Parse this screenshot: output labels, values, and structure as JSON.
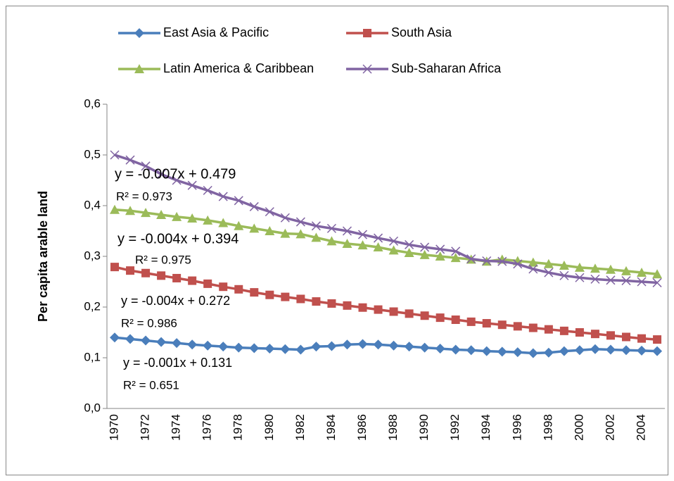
{
  "chart_data": {
    "type": "line",
    "y_label": "Per capita arable land",
    "categories": [
      "1970",
      null,
      "1972",
      null,
      "1974",
      null,
      "1976",
      null,
      "1978",
      null,
      "1980",
      null,
      "1982",
      null,
      "1984",
      null,
      "1986",
      null,
      "1988",
      null,
      "1990",
      null,
      "1992",
      null,
      "1994",
      null,
      "1996",
      null,
      "1998",
      null,
      "2000",
      null,
      "2002",
      null,
      "2004",
      null
    ],
    "series": [
      {
        "name": "East Asia & Pacific",
        "color": "#4a7ebb",
        "marker": "diamond",
        "values": [
          0.14,
          0.137,
          0.134,
          0.131,
          0.129,
          0.126,
          0.124,
          0.122,
          0.12,
          0.119,
          0.118,
          0.117,
          0.116,
          0.122,
          0.123,
          0.126,
          0.127,
          0.126,
          0.124,
          0.122,
          0.12,
          0.118,
          0.116,
          0.115,
          0.113,
          0.112,
          0.111,
          0.109,
          0.11,
          0.113,
          0.115,
          0.117,
          0.116,
          0.115,
          0.114,
          0.113
        ]
      },
      {
        "name": "South Asia",
        "color": "#c0504d",
        "marker": "square",
        "values": [
          0.279,
          0.272,
          0.267,
          0.262,
          0.257,
          0.252,
          0.246,
          0.24,
          0.235,
          0.229,
          0.224,
          0.22,
          0.216,
          0.211,
          0.207,
          0.203,
          0.199,
          0.195,
          0.191,
          0.187,
          0.183,
          0.179,
          0.175,
          0.171,
          0.168,
          0.165,
          0.162,
          0.159,
          0.156,
          0.153,
          0.15,
          0.147,
          0.144,
          0.141,
          0.138,
          0.136
        ]
      },
      {
        "name": "Latin America & Caribbean",
        "color": "#9bbb59",
        "marker": "triangle",
        "values": [
          0.392,
          0.39,
          0.386,
          0.382,
          0.378,
          0.375,
          0.371,
          0.366,
          0.36,
          0.355,
          0.35,
          0.345,
          0.344,
          0.337,
          0.33,
          0.325,
          0.322,
          0.318,
          0.312,
          0.307,
          0.303,
          0.3,
          0.297,
          0.294,
          0.29,
          0.294,
          0.291,
          0.288,
          0.285,
          0.282,
          0.278,
          0.276,
          0.274,
          0.271,
          0.268,
          0.265
        ]
      },
      {
        "name": "Sub-Saharan Africa",
        "color": "#8064a2",
        "marker": "x",
        "values": [
          0.5,
          0.49,
          0.478,
          0.462,
          0.45,
          0.44,
          0.43,
          0.418,
          0.41,
          0.398,
          0.388,
          0.376,
          0.368,
          0.36,
          0.355,
          0.35,
          0.343,
          0.336,
          0.33,
          0.323,
          0.318,
          0.314,
          0.31,
          0.295,
          0.291,
          0.29,
          0.285,
          0.275,
          0.268,
          0.262,
          0.258,
          0.255,
          0.253,
          0.252,
          0.25,
          0.248
        ]
      }
    ],
    "annotations": [
      "y = -0.007x + 0.479",
      "R² = 0.973",
      "y = -0.004x + 0.394",
      "R² = 0.975",
      "y = -0.004x + 0.272",
      "R² = 0.986",
      "y = -0.001x + 0.131",
      "R² = 0.651"
    ],
    "ylim": [
      0,
      0.6
    ],
    "yticks": [
      {
        "value": 0,
        "label": "0,0"
      },
      {
        "value": 0.1,
        "label": "0,1"
      },
      {
        "value": 0.2,
        "label": "0,2"
      },
      {
        "value": 0.3,
        "label": "0,3"
      },
      {
        "value": 0.4,
        "label": "0,4"
      },
      {
        "value": 0.5,
        "label": "0,5"
      },
      {
        "value": 0.6,
        "label": "0,6"
      }
    ],
    "legend": "top"
  }
}
